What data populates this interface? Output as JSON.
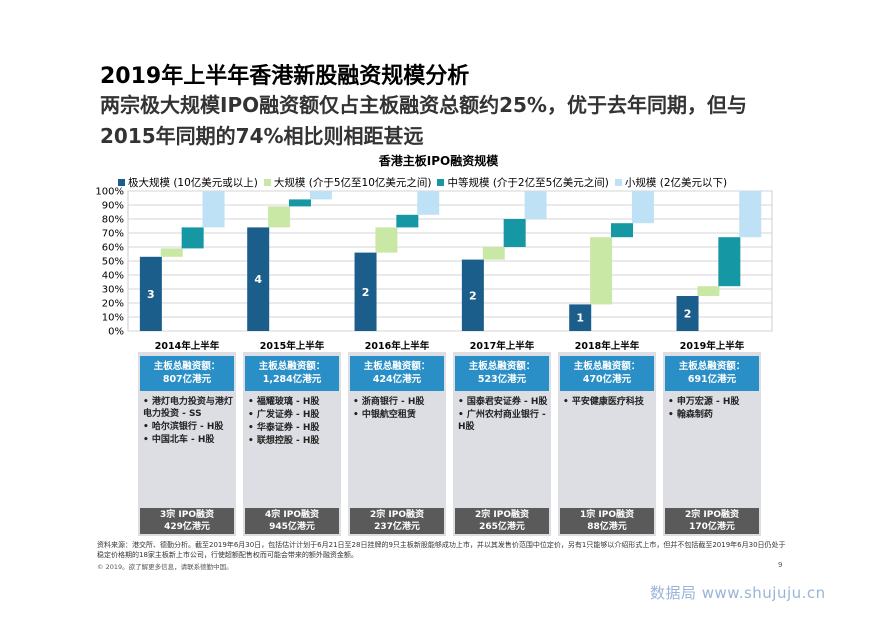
{
  "header": {
    "title": "2019年上半年香港新股融资规模分析",
    "subtitle": "两宗极大规模IPO融资额仅占主板融资总额约25%，优于去年同期，但与2015年同期的74%相比则相距甚远"
  },
  "chart_data": {
    "type": "bar",
    "title": "香港主板IPO融资规模",
    "categories": [
      "2014年上半年",
      "2015年上半年",
      "2016年上半年",
      "2017年上半年",
      "2018年上半年",
      "2019年上半年"
    ],
    "y_ticks": [
      "0%",
      "10%",
      "20%",
      "30%",
      "40%",
      "50%",
      "60%",
      "70%",
      "80%",
      "90%",
      "100%"
    ],
    "ylim": [
      0,
      100
    ],
    "series": [
      {
        "name": "极大规模 (10亿美元或以上)",
        "color": "#1b5e8c",
        "values": [
          53,
          74,
          56,
          51,
          19,
          25
        ],
        "counts": [
          "3",
          "4",
          "2",
          "2",
          "1",
          "2"
        ]
      },
      {
        "name": "大规模 (介于5亿至10亿美元之间)",
        "color": "#c9e8a5",
        "values": [
          6,
          15,
          18,
          9,
          48,
          7
        ]
      },
      {
        "name": "中等规模 (介于2亿至5亿美元之间)",
        "color": "#1597a4",
        "values": [
          15,
          5,
          9,
          20,
          10,
          35
        ]
      },
      {
        "name": "小规模 (2亿美元以下)",
        "color": "#bfe1f5",
        "values": [
          26,
          6,
          17,
          20,
          23,
          33
        ]
      }
    ],
    "grid": true
  },
  "columns": [
    {
      "year": "2014年上半年",
      "head": [
        "主板总融资额：",
        "807亿港元"
      ],
      "items": [
        "港灯电力投资与港灯电力投资 - SS",
        "哈尔滨银行 - H股",
        "中国北车 - H股"
      ],
      "foot": [
        "3宗 IPO融资",
        "429亿港元"
      ]
    },
    {
      "year": "2015年上半年",
      "head": [
        "主板总融资额：",
        "1,284亿港元"
      ],
      "items": [
        "福耀玻璃 - H股",
        "广发证券 - H股",
        "华泰证券 - H股",
        "联想控股 - H股"
      ],
      "foot": [
        "4宗 IPO融资",
        "945亿港元"
      ]
    },
    {
      "year": "2016年上半年",
      "head": [
        "主板总融资额：",
        "424亿港元"
      ],
      "items": [
        "浙商银行 - H股",
        "中银航空租赁"
      ],
      "foot": [
        "2宗 IPO融资",
        "237亿港元"
      ]
    },
    {
      "year": "2017年上半年",
      "head": [
        "主板总融资额：",
        "523亿港元"
      ],
      "items": [
        "国泰君安证券 - H股",
        "广州农村商业银行 - H股"
      ],
      "foot": [
        "2宗 IPO融资",
        "265亿港元"
      ]
    },
    {
      "year": "2018年上半年",
      "head": [
        "主板总融资额：",
        "470亿港元"
      ],
      "items": [
        "平安健康医疗科技"
      ],
      "foot": [
        "1宗 IPO融资",
        "88亿港元"
      ]
    },
    {
      "year": "2019年上半年",
      "head": [
        "主板总融资额：",
        "691亿港元"
      ],
      "items": [
        "申万宏源 - H股",
        "翰森制药"
      ],
      "foot": [
        "2宗 IPO融资",
        "170亿港元"
      ]
    }
  ],
  "footer": {
    "source": "资料来源：港交所、德勤分析。截至2019年6月30日，包括估计计划于6月21日至28日挂牌的9只主板新股能够成功上市，并以其发售价范围中位定价，另有1只能够以介绍形式上市，但并不包括截至2019年6月30日仍处于稳定价格期的18家主板新上市公司，行使超额配售权而可能会带来的额外融资金额。",
    "copyright": "© 2019。欲了解更多信息，请联系德勤中国。",
    "page_number": "9",
    "watermark": "数据局 www.shujuju.cn"
  }
}
